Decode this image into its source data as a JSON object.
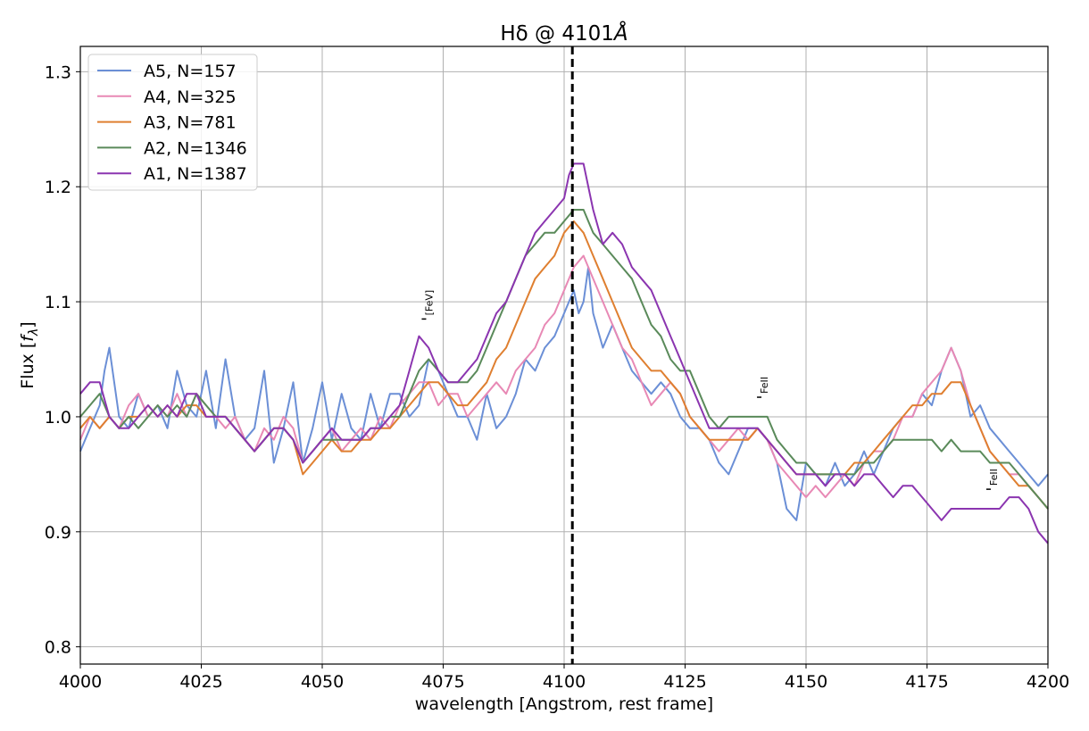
{
  "chart_data": {
    "type": "line",
    "title_main": "Hδ @ 4101",
    "title_unit": "Å",
    "xlabel": "wavelength [Angstrom, rest frame]",
    "ylabel_prefix": "Flux [",
    "ylabel_f": "f",
    "ylabel_sub": "λ",
    "ylabel_suffix": "]",
    "xlim": [
      4000,
      4200
    ],
    "ylim": [
      0.785,
      1.322
    ],
    "xticks": [
      4000,
      4025,
      4050,
      4075,
      4100,
      4125,
      4150,
      4175,
      4200
    ],
    "xtick_labels": [
      "4000",
      "4025",
      "4050",
      "4075",
      "4100",
      "4125",
      "4150",
      "4175",
      "4200"
    ],
    "yticks": [
      0.8,
      0.9,
      1.0,
      1.1,
      1.2,
      1.3
    ],
    "ytick_labels": [
      "0.8",
      "0.9",
      "1.0",
      "1.1",
      "1.2",
      "1.3"
    ],
    "grid": true,
    "legend_position": "top-left",
    "reference_line": {
      "x": 4101.7,
      "color": "#000000",
      "style": "dashed"
    },
    "annotations": [
      {
        "text": "[FeV]",
        "x": 4071.3,
        "y": 1.085
      },
      {
        "text": "FeII",
        "x": 4140.6,
        "y": 1.017
      },
      {
        "text": "FeII",
        "x": 4188.0,
        "y": 0.937
      }
    ],
    "series": [
      {
        "name": "A5, N=157",
        "color": "#6b8fd6",
        "x": [
          4000,
          4002,
          4004,
          4005,
          4006,
          4008,
          4010,
          4012,
          4014,
          4016,
          4018,
          4020,
          4022,
          4024,
          4026,
          4028,
          4030,
          4032,
          4034,
          4036,
          4038,
          4040,
          4042,
          4044,
          4046,
          4048,
          4050,
          4052,
          4054,
          4056,
          4058,
          4060,
          4062,
          4064,
          4066,
          4068,
          4070,
          4072,
          4074,
          4076,
          4078,
          4080,
          4082,
          4084,
          4086,
          4088,
          4090,
          4092,
          4094,
          4096,
          4098,
          4100,
          4101,
          4102,
          4103,
          4104,
          4105,
          4106,
          4108,
          4110,
          4112,
          4114,
          4116,
          4118,
          4120,
          4122,
          4124,
          4126,
          4128,
          4130,
          4132,
          4134,
          4136,
          4138,
          4140,
          4142,
          4144,
          4146,
          4148,
          4150,
          4152,
          4154,
          4156,
          4158,
          4160,
          4162,
          4164,
          4166,
          4168,
          4170,
          4172,
          4174,
          4176,
          4178,
          4180,
          4182,
          4184,
          4186,
          4188,
          4190,
          4192,
          4194,
          4196,
          4198,
          4200
        ],
        "y": [
          0.97,
          0.99,
          1.01,
          1.04,
          1.06,
          1.0,
          0.99,
          1.02,
          1.0,
          1.01,
          0.99,
          1.04,
          1.01,
          1.0,
          1.04,
          0.99,
          1.05,
          1.0,
          0.98,
          0.99,
          1.04,
          0.96,
          0.99,
          1.03,
          0.96,
          0.99,
          1.03,
          0.98,
          1.02,
          0.99,
          0.98,
          1.02,
          0.99,
          1.02,
          1.02,
          1.0,
          1.01,
          1.05,
          1.04,
          1.02,
          1.0,
          1.0,
          0.98,
          1.02,
          0.99,
          1.0,
          1.02,
          1.05,
          1.04,
          1.06,
          1.07,
          1.09,
          1.1,
          1.11,
          1.09,
          1.1,
          1.13,
          1.09,
          1.06,
          1.08,
          1.06,
          1.04,
          1.03,
          1.02,
          1.03,
          1.02,
          1.0,
          0.99,
          0.99,
          0.98,
          0.96,
          0.95,
          0.97,
          0.99,
          0.99,
          0.98,
          0.96,
          0.92,
          0.91,
          0.96,
          0.95,
          0.94,
          0.96,
          0.94,
          0.95,
          0.97,
          0.95,
          0.97,
          0.99,
          1.0,
          1.0,
          1.02,
          1.01,
          1.04,
          1.06,
          1.04,
          1.0,
          1.01,
          0.99,
          0.98,
          0.97,
          0.96,
          0.95,
          0.94,
          0.95
        ]
      },
      {
        "name": "A4, N=325",
        "color": "#e889b5",
        "x": [
          4000,
          4002,
          4004,
          4006,
          4008,
          4010,
          4012,
          4014,
          4016,
          4018,
          4020,
          4022,
          4024,
          4026,
          4028,
          4030,
          4032,
          4034,
          4036,
          4038,
          4040,
          4042,
          4044,
          4046,
          4048,
          4050,
          4052,
          4054,
          4056,
          4058,
          4060,
          4062,
          4064,
          4066,
          4068,
          4070,
          4072,
          4074,
          4076,
          4078,
          4080,
          4082,
          4084,
          4086,
          4088,
          4090,
          4092,
          4094,
          4096,
          4098,
          4100,
          4102,
          4104,
          4106,
          4108,
          4110,
          4112,
          4114,
          4116,
          4118,
          4120,
          4122,
          4124,
          4126,
          4128,
          4130,
          4132,
          4134,
          4136,
          4138,
          4140,
          4142,
          4144,
          4146,
          4148,
          4150,
          4152,
          4154,
          4156,
          4158,
          4160,
          4162,
          4164,
          4166,
          4168,
          4170,
          4172,
          4174,
          4176,
          4178,
          4180,
          4182,
          4184,
          4186,
          4188,
          4190,
          4192,
          4194,
          4196,
          4198,
          4200
        ],
        "y": [
          0.98,
          1.0,
          0.99,
          1.0,
          0.99,
          1.01,
          1.02,
          1.0,
          1.01,
          1.0,
          1.02,
          1.0,
          1.02,
          1.01,
          1.0,
          0.99,
          1.0,
          0.98,
          0.97,
          0.99,
          0.98,
          1.0,
          0.99,
          0.96,
          0.97,
          0.98,
          0.99,
          0.97,
          0.98,
          0.99,
          0.98,
          1.0,
          0.99,
          1.01,
          1.02,
          1.03,
          1.03,
          1.01,
          1.02,
          1.02,
          1.0,
          1.01,
          1.02,
          1.03,
          1.02,
          1.04,
          1.05,
          1.06,
          1.08,
          1.09,
          1.11,
          1.13,
          1.14,
          1.12,
          1.1,
          1.08,
          1.06,
          1.05,
          1.03,
          1.01,
          1.02,
          1.03,
          1.02,
          1.0,
          0.99,
          0.98,
          0.97,
          0.98,
          0.99,
          0.98,
          0.99,
          0.98,
          0.96,
          0.95,
          0.94,
          0.93,
          0.94,
          0.93,
          0.94,
          0.95,
          0.94,
          0.96,
          0.97,
          0.97,
          0.98,
          1.0,
          1.0,
          1.02,
          1.03,
          1.04,
          1.06,
          1.04,
          1.01,
          0.99,
          0.97,
          0.96,
          0.95,
          0.95,
          0.94,
          0.93,
          0.92
        ]
      },
      {
        "name": "A3, N=781",
        "color": "#df7f30",
        "x": [
          4000,
          4002,
          4004,
          4006,
          4008,
          4010,
          4012,
          4014,
          4016,
          4018,
          4020,
          4022,
          4024,
          4026,
          4028,
          4030,
          4032,
          4034,
          4036,
          4038,
          4040,
          4042,
          4044,
          4046,
          4048,
          4050,
          4052,
          4054,
          4056,
          4058,
          4060,
          4062,
          4064,
          4066,
          4068,
          4070,
          4072,
          4074,
          4076,
          4078,
          4080,
          4082,
          4084,
          4086,
          4088,
          4090,
          4092,
          4094,
          4096,
          4098,
          4100,
          4102,
          4104,
          4106,
          4108,
          4110,
          4112,
          4114,
          4116,
          4118,
          4120,
          4122,
          4124,
          4126,
          4128,
          4130,
          4132,
          4134,
          4136,
          4138,
          4140,
          4142,
          4144,
          4146,
          4148,
          4150,
          4152,
          4154,
          4156,
          4158,
          4160,
          4162,
          4164,
          4166,
          4168,
          4170,
          4172,
          4174,
          4176,
          4178,
          4180,
          4182,
          4184,
          4186,
          4188,
          4190,
          4192,
          4194,
          4196,
          4198,
          4200
        ],
        "y": [
          0.99,
          1.0,
          0.99,
          1.0,
          0.99,
          1.0,
          1.0,
          1.01,
          1.0,
          1.01,
          1.0,
          1.01,
          1.01,
          1.0,
          1.0,
          1.0,
          0.99,
          0.98,
          0.97,
          0.98,
          0.99,
          0.99,
          0.98,
          0.95,
          0.96,
          0.97,
          0.98,
          0.97,
          0.97,
          0.98,
          0.98,
          0.99,
          0.99,
          1.0,
          1.01,
          1.02,
          1.03,
          1.03,
          1.02,
          1.01,
          1.01,
          1.02,
          1.03,
          1.05,
          1.06,
          1.08,
          1.1,
          1.12,
          1.13,
          1.14,
          1.16,
          1.17,
          1.16,
          1.14,
          1.12,
          1.1,
          1.08,
          1.06,
          1.05,
          1.04,
          1.04,
          1.03,
          1.02,
          1.0,
          0.99,
          0.98,
          0.98,
          0.98,
          0.98,
          0.98,
          0.99,
          0.98,
          0.97,
          0.96,
          0.95,
          0.95,
          0.95,
          0.95,
          0.95,
          0.95,
          0.96,
          0.96,
          0.97,
          0.98,
          0.99,
          1.0,
          1.01,
          1.01,
          1.02,
          1.02,
          1.03,
          1.03,
          1.01,
          0.99,
          0.97,
          0.96,
          0.95,
          0.94,
          0.94,
          0.93,
          0.92
        ]
      },
      {
        "name": "A2, N=1346",
        "color": "#5a8a5a",
        "x": [
          4000,
          4002,
          4004,
          4006,
          4008,
          4010,
          4012,
          4014,
          4016,
          4018,
          4020,
          4022,
          4024,
          4026,
          4028,
          4030,
          4032,
          4034,
          4036,
          4038,
          4040,
          4042,
          4044,
          4046,
          4048,
          4050,
          4052,
          4054,
          4056,
          4058,
          4060,
          4062,
          4064,
          4066,
          4068,
          4070,
          4072,
          4074,
          4076,
          4078,
          4080,
          4082,
          4084,
          4086,
          4088,
          4090,
          4092,
          4094,
          4096,
          4098,
          4100,
          4102,
          4104,
          4106,
          4108,
          4110,
          4112,
          4114,
          4116,
          4118,
          4120,
          4122,
          4124,
          4126,
          4128,
          4130,
          4132,
          4134,
          4136,
          4138,
          4140,
          4142,
          4144,
          4146,
          4148,
          4150,
          4152,
          4154,
          4156,
          4158,
          4160,
          4162,
          4164,
          4166,
          4168,
          4170,
          4172,
          4174,
          4176,
          4178,
          4180,
          4182,
          4184,
          4186,
          4188,
          4190,
          4192,
          4194,
          4196,
          4198,
          4200
        ],
        "y": [
          1.0,
          1.01,
          1.02,
          1.0,
          0.99,
          1.0,
          0.99,
          1.0,
          1.01,
          1.0,
          1.01,
          1.0,
          1.02,
          1.01,
          1.0,
          1.0,
          0.99,
          0.98,
          0.97,
          0.98,
          0.99,
          0.99,
          0.98,
          0.96,
          0.97,
          0.98,
          0.98,
          0.98,
          0.98,
          0.98,
          0.99,
          0.99,
          1.0,
          1.0,
          1.02,
          1.04,
          1.05,
          1.04,
          1.03,
          1.03,
          1.03,
          1.04,
          1.06,
          1.08,
          1.1,
          1.12,
          1.14,
          1.15,
          1.16,
          1.16,
          1.17,
          1.18,
          1.18,
          1.16,
          1.15,
          1.14,
          1.13,
          1.12,
          1.1,
          1.08,
          1.07,
          1.05,
          1.04,
          1.04,
          1.02,
          1.0,
          0.99,
          1.0,
          1.0,
          1.0,
          1.0,
          1.0,
          0.98,
          0.97,
          0.96,
          0.96,
          0.95,
          0.95,
          0.95,
          0.95,
          0.95,
          0.96,
          0.96,
          0.97,
          0.98,
          0.98,
          0.98,
          0.98,
          0.98,
          0.97,
          0.98,
          0.97,
          0.97,
          0.97,
          0.96,
          0.96,
          0.96,
          0.95,
          0.94,
          0.93,
          0.92
        ]
      },
      {
        "name": "A1, N=1387",
        "color": "#8b35b0",
        "x": [
          4000,
          4002,
          4004,
          4006,
          4008,
          4010,
          4012,
          4014,
          4016,
          4018,
          4020,
          4022,
          4024,
          4026,
          4028,
          4030,
          4032,
          4034,
          4036,
          4038,
          4040,
          4042,
          4044,
          4046,
          4048,
          4050,
          4052,
          4054,
          4056,
          4058,
          4060,
          4062,
          4064,
          4066,
          4068,
          4070,
          4072,
          4074,
          4076,
          4078,
          4080,
          4082,
          4084,
          4086,
          4088,
          4090,
          4092,
          4094,
          4096,
          4098,
          4100,
          4101,
          4102,
          4103,
          4104,
          4106,
          4108,
          4110,
          4112,
          4114,
          4116,
          4118,
          4120,
          4122,
          4124,
          4126,
          4128,
          4130,
          4132,
          4134,
          4136,
          4138,
          4140,
          4142,
          4144,
          4146,
          4148,
          4150,
          4152,
          4154,
          4156,
          4158,
          4160,
          4162,
          4164,
          4166,
          4168,
          4170,
          4172,
          4174,
          4176,
          4178,
          4180,
          4182,
          4184,
          4186,
          4188,
          4190,
          4192,
          4194,
          4196,
          4198,
          4200
        ],
        "y": [
          1.02,
          1.03,
          1.03,
          1.0,
          0.99,
          0.99,
          1.0,
          1.01,
          1.0,
          1.01,
          1.0,
          1.02,
          1.02,
          1.0,
          1.0,
          1.0,
          0.99,
          0.98,
          0.97,
          0.98,
          0.99,
          0.99,
          0.98,
          0.96,
          0.97,
          0.98,
          0.99,
          0.98,
          0.98,
          0.98,
          0.99,
          0.99,
          1.0,
          1.01,
          1.04,
          1.07,
          1.06,
          1.04,
          1.03,
          1.03,
          1.04,
          1.05,
          1.07,
          1.09,
          1.1,
          1.12,
          1.14,
          1.16,
          1.17,
          1.18,
          1.19,
          1.21,
          1.22,
          1.22,
          1.22,
          1.18,
          1.15,
          1.16,
          1.15,
          1.13,
          1.12,
          1.11,
          1.09,
          1.07,
          1.05,
          1.03,
          1.01,
          0.99,
          0.99,
          0.99,
          0.99,
          0.99,
          0.99,
          0.98,
          0.97,
          0.96,
          0.95,
          0.95,
          0.95,
          0.94,
          0.95,
          0.95,
          0.94,
          0.95,
          0.95,
          0.94,
          0.93,
          0.94,
          0.94,
          0.93,
          0.92,
          0.91,
          0.92,
          0.92,
          0.92,
          0.92,
          0.92,
          0.92,
          0.93,
          0.93,
          0.92,
          0.9,
          0.89
        ]
      }
    ]
  }
}
